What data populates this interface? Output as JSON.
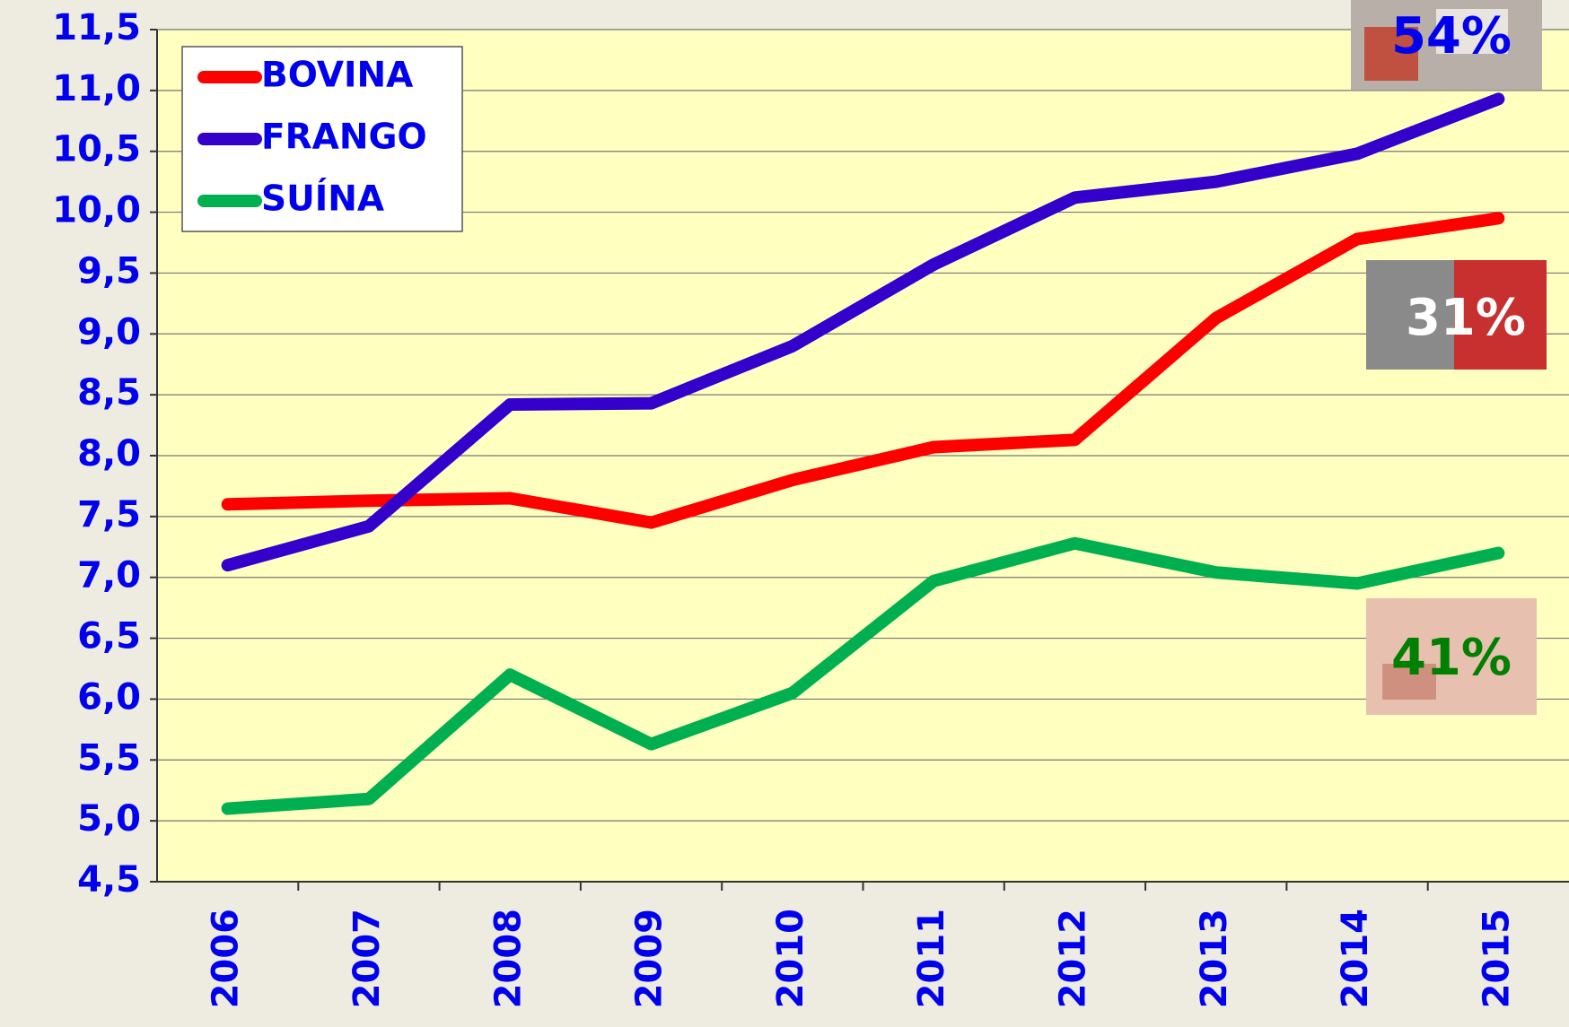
{
  "chart_data": {
    "type": "line",
    "categories": [
      "2006",
      "2007",
      "2008",
      "2009",
      "2010",
      "2011",
      "2012",
      "2013",
      "2014",
      "2015"
    ],
    "series": [
      {
        "name": "BOVINA",
        "color": "#ff0000",
        "values": [
          7.6,
          7.63,
          7.65,
          7.45,
          7.8,
          8.07,
          8.13,
          9.13,
          9.78,
          9.95
        ]
      },
      {
        "name": "FRANGO",
        "color": "#3300cc",
        "values": [
          7.1,
          7.42,
          8.42,
          8.43,
          8.9,
          9.57,
          10.12,
          10.25,
          10.48,
          10.93
        ]
      },
      {
        "name": "SUÍNA",
        "color": "#00b050",
        "values": [
          5.1,
          5.18,
          6.2,
          5.63,
          6.05,
          6.97,
          7.28,
          7.04,
          6.95,
          7.2
        ]
      }
    ],
    "ylim": [
      4.5,
      11.5
    ],
    "yticks": [
      {
        "value": 4.5,
        "label": "4,5"
      },
      {
        "value": 5.0,
        "label": "5,0"
      },
      {
        "value": 5.5,
        "label": "5,5"
      },
      {
        "value": 6.0,
        "label": "6,0"
      },
      {
        "value": 6.5,
        "label": "6,5"
      },
      {
        "value": 7.0,
        "label": "7,0"
      },
      {
        "value": 7.5,
        "label": "7,5"
      },
      {
        "value": 8.0,
        "label": "8,0"
      },
      {
        "value": 8.5,
        "label": "8,5"
      },
      {
        "value": 9.0,
        "label": "9,0"
      },
      {
        "value": 9.5,
        "label": "9,5"
      },
      {
        "value": 10.0,
        "label": "10,0"
      },
      {
        "value": 10.5,
        "label": "10,5"
      },
      {
        "value": 11.0,
        "label": "11,0"
      },
      {
        "value": 11.5,
        "label": "11,5"
      }
    ],
    "grid": true,
    "legend": "upper left",
    "annotations": [
      "54%",
      "31%",
      "41%"
    ]
  }
}
